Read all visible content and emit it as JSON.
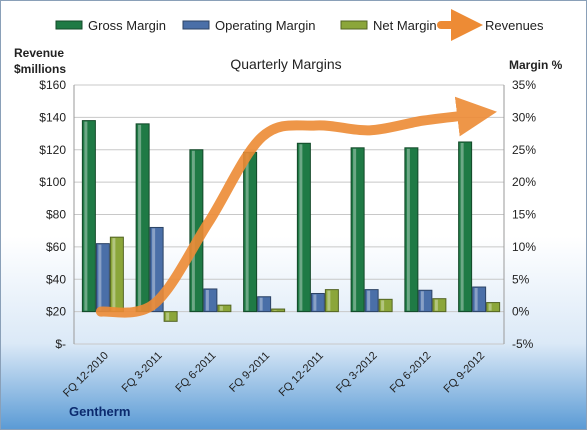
{
  "chart_data": {
    "type": "bar",
    "title": "Quarterly Margins",
    "company": "Gentherm",
    "left_axis": {
      "label_line1": "Revenue",
      "label_line2": "$millions",
      "range": [
        0,
        160
      ],
      "ticks": [
        "$-",
        "$20",
        "$40",
        "$60",
        "$80",
        "$100",
        "$120",
        "$140",
        "$160"
      ]
    },
    "right_axis": {
      "label": "Margin %",
      "range": [
        -5,
        35
      ],
      "ticks": [
        "-5%",
        "0%",
        "5%",
        "10%",
        "15%",
        "20%",
        "25%",
        "30%",
        "35%"
      ]
    },
    "categories": [
      "FQ 12-2010",
      "FQ 3-2011",
      "FQ 6-2011",
      "FQ 9-2011",
      "FQ 12-2011",
      "FQ 3-2012",
      "FQ 6-2012",
      "FQ 9-2012"
    ],
    "series": [
      {
        "name": "Gross Margin",
        "type": "bar",
        "axis": "right",
        "color": "#1f7a45",
        "values": [
          29.5,
          29.0,
          25.0,
          24.6,
          26.0,
          25.3,
          25.3,
          26.2
        ]
      },
      {
        "name": "Operating Margin",
        "type": "bar",
        "axis": "right",
        "color": "#4a6fa8",
        "values": [
          10.5,
          13.0,
          3.5,
          2.3,
          2.8,
          3.4,
          3.3,
          3.8
        ]
      },
      {
        "name": "Net Margin",
        "type": "bar",
        "axis": "right",
        "color": "#8ba63a",
        "values": [
          11.5,
          -1.5,
          1.0,
          0.4,
          3.4,
          1.9,
          2.0,
          1.4
        ]
      },
      {
        "name": "Revenues",
        "type": "line",
        "axis": "left",
        "color": "#ed8b35",
        "values": [
          20,
          25,
          75,
          128,
          135,
          132,
          138,
          142
        ]
      }
    ],
    "legend_position": "top",
    "grid": true
  }
}
